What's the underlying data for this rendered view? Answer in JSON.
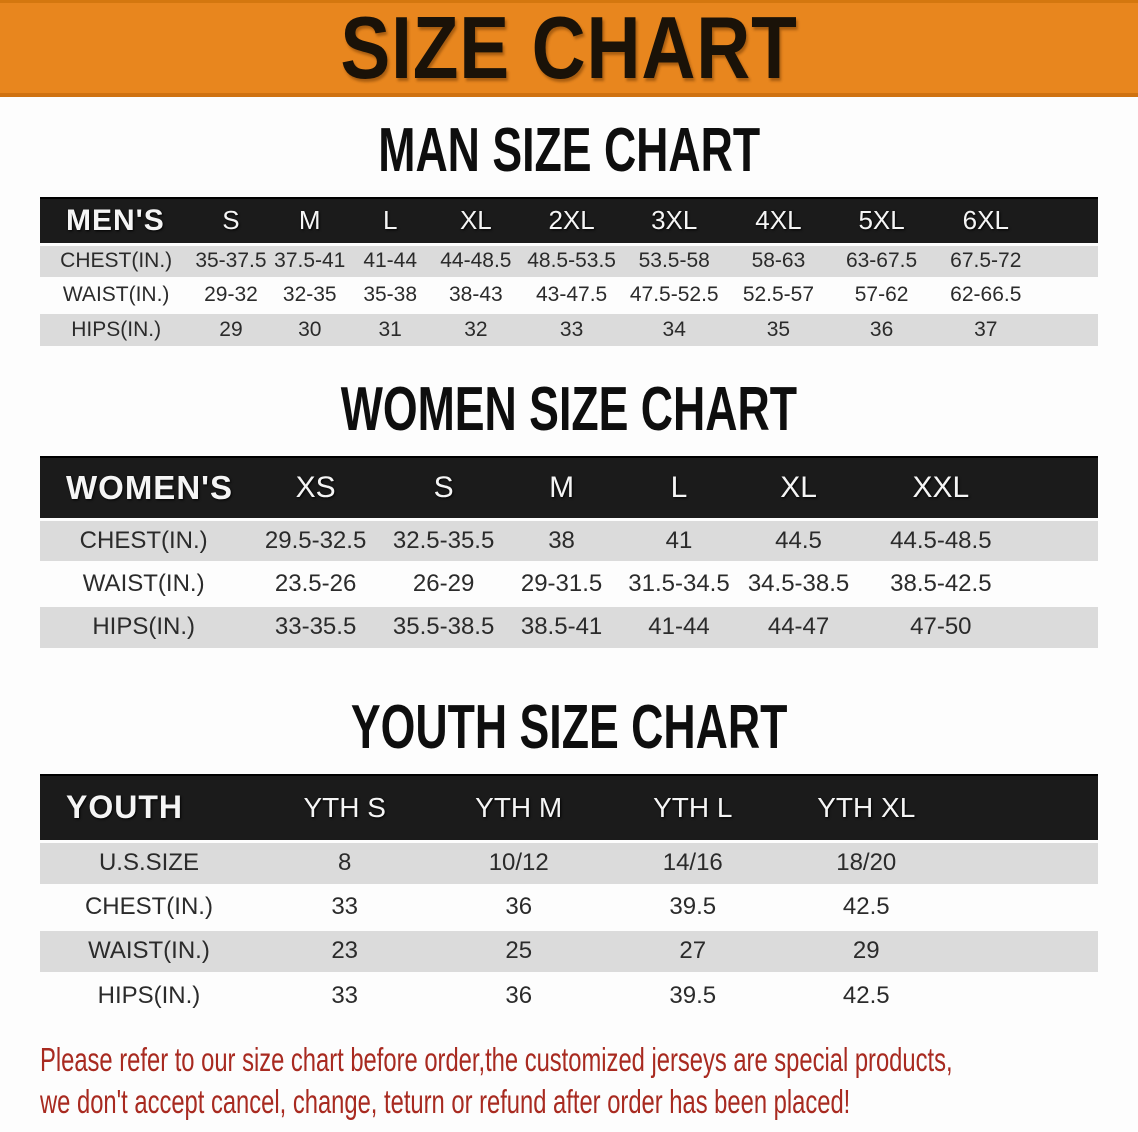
{
  "banner": {
    "title": "SIZE CHART",
    "bg_color": "#E8861E",
    "text_color": "#1a1208"
  },
  "sections": [
    {
      "id": "men",
      "heading": "MAN SIZE CHART",
      "table": {
        "header_label": "MEN'S",
        "sizes": [
          "S",
          "M",
          "L",
          "XL",
          "2XL",
          "3XL",
          "4XL",
          "5XL",
          "6XL"
        ],
        "rows": [
          {
            "label": "CHEST(IN.)",
            "values": [
              "35-37.5",
              "37.5-41",
              "41-44",
              "44-48.5",
              "48.5-53.5",
              "53.5-58",
              "58-63",
              "63-67.5",
              "67.5-72"
            ]
          },
          {
            "label": "WAIST(IN.)",
            "values": [
              "29-32",
              "32-35",
              "35-38",
              "38-43",
              "43-47.5",
              "47.5-52.5",
              "52.5-57",
              "57-62",
              "62-66.5"
            ]
          },
          {
            "label": "HIPS(IN.)",
            "values": [
              "29",
              "30",
              "31",
              "32",
              "33",
              "34",
              "35",
              "36",
              "37"
            ]
          }
        ]
      }
    },
    {
      "id": "women",
      "heading": "WOMEN SIZE CHART",
      "table": {
        "header_label": "WOMEN'S",
        "sizes": [
          "XS",
          "S",
          "M",
          "L",
          "XL",
          "XXL"
        ],
        "rows": [
          {
            "label": "CHEST(IN.)",
            "values": [
              "29.5-32.5",
              "32.5-35.5",
              "38",
              "41",
              "44.5",
              "44.5-48.5"
            ]
          },
          {
            "label": "WAIST(IN.)",
            "values": [
              "23.5-26",
              "26-29",
              "29-31.5",
              "31.5-34.5",
              "34.5-38.5",
              "38.5-42.5"
            ]
          },
          {
            "label": "HIPS(IN.)",
            "values": [
              "33-35.5",
              "35.5-38.5",
              "38.5-41",
              "41-44",
              "44-47",
              "47-50"
            ]
          }
        ]
      }
    },
    {
      "id": "youth",
      "heading": "YOUTH SIZE CHART",
      "table": {
        "header_label": "YOUTH",
        "sizes": [
          "YTH S",
          "YTH M",
          "YTH L",
          "YTH XL"
        ],
        "rows": [
          {
            "label": "U.S.SIZE",
            "values": [
              "8",
              "10/12",
              "14/16",
              "18/20"
            ]
          },
          {
            "label": "CHEST(IN.)",
            "values": [
              "33",
              "36",
              "39.5",
              "42.5"
            ]
          },
          {
            "label": "WAIST(IN.)",
            "values": [
              "23",
              "25",
              "27",
              "29"
            ]
          },
          {
            "label": "HIPS(IN.)",
            "values": [
              "33",
              "36",
              "39.5",
              "42.5"
            ]
          }
        ]
      }
    }
  ],
  "disclaimer": {
    "line1": "Please refer to our size chart before order,the customized jerseys are special products,",
    "line2": "we don't accept cancel, change, teturn or refund after order has been placed!",
    "text_color": "#A82A20"
  }
}
